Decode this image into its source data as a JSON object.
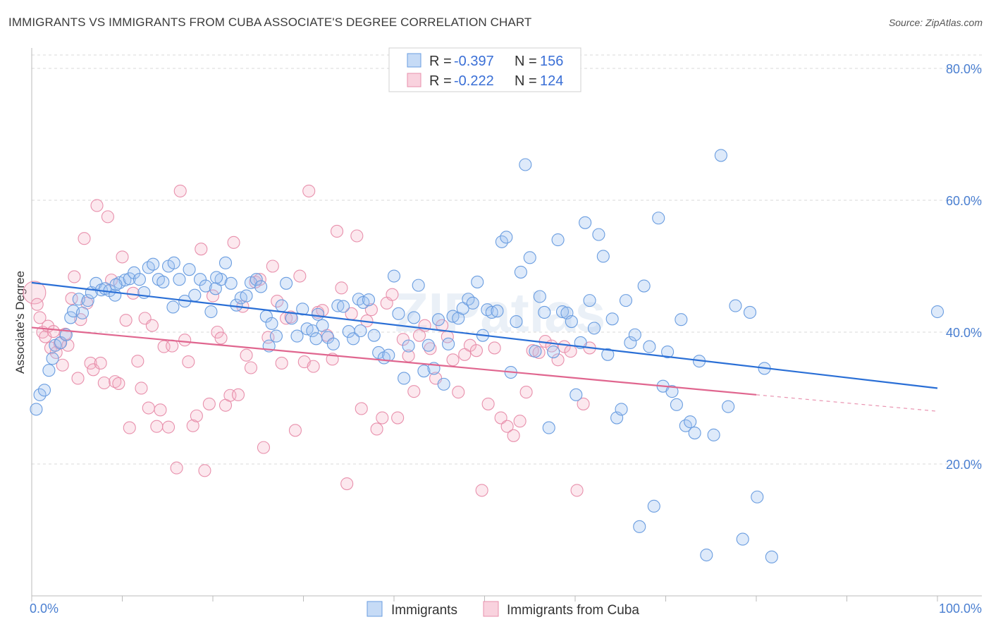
{
  "title": "IMMIGRANTS VS IMMIGRANTS FROM CUBA ASSOCIATE'S DEGREE CORRELATION CHART",
  "source": "Source: ZipAtlas.com",
  "watermark": "ZIPatlas",
  "colors": {
    "blue": "#6a9de0",
    "blue_fill": "rgba(160,195,240,0.35)",
    "blue_line": "#2a6fd6",
    "pink": "#e890ac",
    "pink_fill": "rgba(245,180,200,0.30)",
    "pink_line": "#e0668f",
    "axis_label": "#4a7fd1",
    "grid": "#d8d8d8"
  },
  "chart_data": {
    "type": "scatter",
    "title": "IMMIGRANTS VS IMMIGRANTS FROM CUBA ASSOCIATE'S DEGREE CORRELATION CHART",
    "xlabel": "",
    "ylabel": "Associate's Degree",
    "xlim": [
      0,
      100
    ],
    "ylim": [
      0,
      80
    ],
    "x_tick_labels": [
      "0.0%",
      "100.0%"
    ],
    "y_ticks": [
      20,
      40,
      60,
      80
    ],
    "y_tick_labels": [
      "20.0%",
      "40.0%",
      "60.0%",
      "80.0%"
    ],
    "legend": [
      {
        "name": "Immigrants",
        "r_label": "R =",
        "r": "-0.397",
        "n_label": "N =",
        "n": "156"
      },
      {
        "name": "Immigrants from Cuba",
        "r_label": "R =",
        "r": "-0.222",
        "n_label": "N =",
        "n": "124"
      }
    ],
    "series": [
      {
        "name": "Immigrants",
        "trend": {
          "x0": 0,
          "y0": 47.5,
          "x1": 100,
          "y1": 31.5
        },
        "points": [
          [
            0.5,
            28.3
          ],
          [
            0.9,
            30.5
          ],
          [
            1.4,
            31.2
          ],
          [
            1.9,
            34.2
          ],
          [
            2.3,
            36
          ],
          [
            2.6,
            38
          ],
          [
            3.2,
            38.4
          ],
          [
            3.8,
            39.6
          ],
          [
            4.3,
            42.2
          ],
          [
            4.6,
            43.2
          ],
          [
            5.2,
            45
          ],
          [
            5.6,
            42.9
          ],
          [
            6.2,
            44.8
          ],
          [
            6.6,
            46
          ],
          [
            7.1,
            47.4
          ],
          [
            7.7,
            46.4
          ],
          [
            8.1,
            46.6
          ],
          [
            8.6,
            46.3
          ],
          [
            9.2,
            45.6
          ],
          [
            9.7,
            47.5
          ],
          [
            10.3,
            47.9
          ],
          [
            10.8,
            48.1
          ],
          [
            11.3,
            49
          ],
          [
            11.9,
            48
          ],
          [
            12.4,
            46
          ],
          [
            12.9,
            49.8
          ],
          [
            13.4,
            50.3
          ],
          [
            14,
            48
          ],
          [
            14.5,
            47.6
          ],
          [
            15.1,
            50
          ],
          [
            15.7,
            50.5
          ],
          [
            16.3,
            48
          ],
          [
            16.9,
            44.7
          ],
          [
            17.4,
            49.5
          ],
          [
            18,
            45.6
          ],
          [
            18.6,
            48
          ],
          [
            19.2,
            47
          ],
          [
            19.8,
            43.1
          ],
          [
            20.3,
            46.6
          ],
          [
            20.9,
            48
          ],
          [
            21.4,
            50.5
          ],
          [
            22,
            47.4
          ],
          [
            22.6,
            44.1
          ],
          [
            23.1,
            45.2
          ],
          [
            23.7,
            45.5
          ],
          [
            24.2,
            47.5
          ],
          [
            24.8,
            48
          ],
          [
            25.3,
            46.9
          ],
          [
            25.9,
            42.4
          ],
          [
            26.5,
            41.3
          ],
          [
            27,
            39.4
          ],
          [
            27.6,
            44
          ],
          [
            28.1,
            47.4
          ],
          [
            28.7,
            42.1
          ],
          [
            29.3,
            39.4
          ],
          [
            29.9,
            43.5
          ],
          [
            30.4,
            40.5
          ],
          [
            31,
            40.2
          ],
          [
            31.6,
            42.7
          ],
          [
            32.1,
            41
          ],
          [
            32.7,
            39.2
          ],
          [
            33.3,
            38.2
          ],
          [
            33.8,
            44
          ],
          [
            34.4,
            43.9
          ],
          [
            35,
            40.1
          ],
          [
            35.5,
            39
          ],
          [
            36.1,
            45
          ],
          [
            36.6,
            44.5
          ],
          [
            37.2,
            44.9
          ],
          [
            37.8,
            39.5
          ],
          [
            38.3,
            36.9
          ],
          [
            38.9,
            36.1
          ],
          [
            39.4,
            36.5
          ],
          [
            40,
            48.5
          ],
          [
            40.5,
            42.8
          ],
          [
            41.1,
            33
          ],
          [
            41.6,
            37.9
          ],
          [
            42.2,
            42.2
          ],
          [
            42.7,
            47.1
          ],
          [
            43.3,
            34.1
          ],
          [
            43.8,
            38
          ],
          [
            44.4,
            34.5
          ],
          [
            44.9,
            41.9
          ],
          [
            45.5,
            32.1
          ],
          [
            46,
            38.2
          ],
          [
            46.5,
            42.4
          ],
          [
            47.1,
            42.1
          ],
          [
            47.6,
            43.6
          ],
          [
            48.2,
            45
          ],
          [
            48.7,
            44.4
          ],
          [
            49.2,
            47.6
          ],
          [
            49.8,
            39.5
          ],
          [
            50.3,
            43.4
          ],
          [
            50.8,
            43
          ],
          [
            51.4,
            43.2
          ],
          [
            51.9,
            53.7
          ],
          [
            52.4,
            54.4
          ],
          [
            52.9,
            33.9
          ],
          [
            53.5,
            41.6
          ],
          [
            54,
            49.1
          ],
          [
            54.5,
            65.4
          ],
          [
            55,
            51.3
          ],
          [
            55.6,
            37.1
          ],
          [
            56.1,
            45.4
          ],
          [
            56.6,
            43
          ],
          [
            57.1,
            25.5
          ],
          [
            57.6,
            37
          ],
          [
            58.1,
            54
          ],
          [
            58.6,
            43.1
          ],
          [
            59.1,
            42.9
          ],
          [
            59.6,
            41.6
          ],
          [
            60.1,
            30.5
          ],
          [
            60.6,
            38.4
          ],
          [
            61.1,
            56.6
          ],
          [
            61.6,
            44.8
          ],
          [
            62.1,
            40.6
          ],
          [
            62.6,
            54.8
          ],
          [
            63.1,
            51.5
          ],
          [
            63.6,
            36.6
          ],
          [
            64.1,
            42
          ],
          [
            64.6,
            27
          ],
          [
            65.1,
            28.3
          ],
          [
            65.6,
            44.8
          ],
          [
            66.1,
            38.4
          ],
          [
            66.6,
            39.6
          ],
          [
            67.1,
            10.5
          ],
          [
            67.6,
            47
          ],
          [
            68.2,
            37.8
          ],
          [
            68.7,
            13.6
          ],
          [
            69.2,
            57.3
          ],
          [
            69.7,
            31.8
          ],
          [
            70.2,
            37
          ],
          [
            70.7,
            31
          ],
          [
            71.2,
            29
          ],
          [
            71.7,
            41.9
          ],
          [
            72.2,
            25.8
          ],
          [
            72.7,
            26.4
          ],
          [
            73.2,
            24.7
          ],
          [
            73.7,
            35.6
          ],
          [
            74.5,
            6.2
          ],
          [
            75.3,
            24.4
          ],
          [
            76.1,
            66.8
          ],
          [
            76.9,
            28.7
          ],
          [
            77.7,
            44
          ],
          [
            78.5,
            8.6
          ],
          [
            79.3,
            43
          ],
          [
            80.1,
            15
          ],
          [
            80.9,
            34.5
          ],
          [
            81.7,
            5.9
          ],
          [
            100,
            43.1
          ],
          [
            26.2,
            37.9
          ],
          [
            31.4,
            39
          ],
          [
            36.3,
            40.2
          ],
          [
            20.4,
            48.3
          ],
          [
            15.6,
            43.8
          ],
          [
            9.3,
            47.2
          ]
        ]
      },
      {
        "name": "Immigrants from Cuba",
        "trend": {
          "x0": 0,
          "y0": 40.7,
          "x1": 80,
          "y1": 30.5
        },
        "trend_ext": {
          "x0": 80,
          "y0": 30.5,
          "x1": 100,
          "y1": 28
        },
        "points": [
          [
            0.3,
            46
          ],
          [
            0.6,
            44.2
          ],
          [
            0.9,
            42.2
          ],
          [
            1.2,
            40
          ],
          [
            1.5,
            39.3
          ],
          [
            1.8,
            40.9
          ],
          [
            2.1,
            37.6
          ],
          [
            2.4,
            40.1
          ],
          [
            2.7,
            36.9
          ],
          [
            3.1,
            38.3
          ],
          [
            3.4,
            35
          ],
          [
            3.7,
            39.7
          ],
          [
            4,
            38
          ],
          [
            4.4,
            45.1
          ],
          [
            4.7,
            48.4
          ],
          [
            5.1,
            33
          ],
          [
            5.4,
            41.9
          ],
          [
            5.8,
            54.2
          ],
          [
            6.1,
            44.4
          ],
          [
            6.5,
            35.3
          ],
          [
            6.8,
            34.3
          ],
          [
            7.2,
            59.2
          ],
          [
            7.6,
            35.3
          ],
          [
            8,
            32.3
          ],
          [
            8.4,
            57.5
          ],
          [
            8.8,
            47.9
          ],
          [
            9.2,
            32.5
          ],
          [
            9.6,
            32.2
          ],
          [
            10,
            51.4
          ],
          [
            10.4,
            41.8
          ],
          [
            10.8,
            25.5
          ],
          [
            11.2,
            45.9
          ],
          [
            11.7,
            35.6
          ],
          [
            12.1,
            31.5
          ],
          [
            12.5,
            42.1
          ],
          [
            12.9,
            28.5
          ],
          [
            13.3,
            41
          ],
          [
            13.8,
            25.7
          ],
          [
            14.2,
            28.2
          ],
          [
            14.6,
            37.8
          ],
          [
            15.1,
            25.6
          ],
          [
            15.5,
            37.9
          ],
          [
            16,
            19.4
          ],
          [
            16.4,
            61.4
          ],
          [
            16.9,
            38.8
          ],
          [
            17.3,
            35.5
          ],
          [
            17.8,
            25.8
          ],
          [
            18.2,
            27.3
          ],
          [
            18.7,
            52.6
          ],
          [
            19.1,
            19
          ],
          [
            19.6,
            29.1
          ],
          [
            20,
            45.5
          ],
          [
            20.5,
            40
          ],
          [
            20.9,
            39.1
          ],
          [
            21.4,
            28.9
          ],
          [
            21.9,
            30.4
          ],
          [
            22.3,
            53.6
          ],
          [
            22.8,
            30.5
          ],
          [
            23.3,
            43.9
          ],
          [
            23.7,
            36.5
          ],
          [
            24.2,
            34.6
          ],
          [
            24.7,
            47.6
          ],
          [
            25.2,
            48
          ],
          [
            25.6,
            22.5
          ],
          [
            26.1,
            39.2
          ],
          [
            26.6,
            50
          ],
          [
            27.1,
            44.7
          ],
          [
            27.6,
            35.3
          ],
          [
            28.1,
            42.1
          ],
          [
            28.6,
            42.3
          ],
          [
            29.1,
            25.1
          ],
          [
            29.6,
            48.5
          ],
          [
            30.1,
            35.5
          ],
          [
            30.6,
            61.4
          ],
          [
            31.1,
            34.8
          ],
          [
            31.6,
            43
          ],
          [
            32.1,
            43.3
          ],
          [
            32.6,
            39.5
          ],
          [
            33.2,
            35.9
          ],
          [
            33.7,
            55.3
          ],
          [
            34.2,
            46.7
          ],
          [
            34.8,
            17
          ],
          [
            35.3,
            42.8
          ],
          [
            35.9,
            54.6
          ],
          [
            36.4,
            28.4
          ],
          [
            37,
            41.7
          ],
          [
            37.5,
            43.4
          ],
          [
            38.1,
            25.3
          ],
          [
            38.7,
            27
          ],
          [
            39.2,
            44.4
          ],
          [
            39.8,
            45.7
          ],
          [
            40.4,
            27
          ],
          [
            41,
            38.9
          ],
          [
            41.6,
            36.4
          ],
          [
            42.2,
            31
          ],
          [
            42.8,
            39.5
          ],
          [
            43.4,
            41
          ],
          [
            44,
            37.5
          ],
          [
            44.6,
            33
          ],
          [
            45.3,
            41
          ],
          [
            45.9,
            39.3
          ],
          [
            46.5,
            35.8
          ],
          [
            47.1,
            30.9
          ],
          [
            47.8,
            36.6
          ],
          [
            48.4,
            38
          ],
          [
            49.1,
            37.2
          ],
          [
            49.7,
            16
          ],
          [
            50.4,
            29.1
          ],
          [
            51.1,
            37.6
          ],
          [
            51.8,
            27
          ],
          [
            52.5,
            25.7
          ],
          [
            53.2,
            24.3
          ],
          [
            53.9,
            26.5
          ],
          [
            54.6,
            30.9
          ],
          [
            55.3,
            37.2
          ],
          [
            56,
            36.9
          ],
          [
            56.7,
            38.6
          ],
          [
            57.4,
            37.9
          ],
          [
            58.1,
            35.8
          ],
          [
            58.8,
            37.8
          ],
          [
            59.5,
            37.1
          ],
          [
            60.2,
            16
          ],
          [
            60.9,
            29.1
          ],
          [
            61.6,
            37.6
          ]
        ]
      }
    ]
  }
}
